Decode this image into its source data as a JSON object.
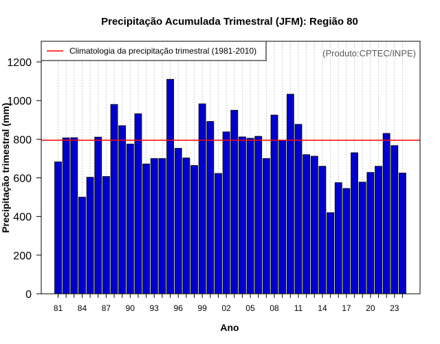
{
  "chart_data": {
    "type": "bar",
    "title": "Precipitação Acumulada Trimestral (JFM): Região 80",
    "xlabel": "Ano",
    "ylabel": "Precipitação trimestral (mm)",
    "ylim": [
      0,
      1300
    ],
    "yticks": [
      0,
      200,
      400,
      600,
      800,
      1000,
      1200
    ],
    "grid": "vertical dotted",
    "categories": [
      "81",
      "82",
      "83",
      "84",
      "85",
      "86",
      "87",
      "88",
      "89",
      "90",
      "91",
      "92",
      "93",
      "94",
      "95",
      "96",
      "97",
      "98",
      "99",
      "00",
      "01",
      "02",
      "03",
      "04",
      "05",
      "06",
      "07",
      "08",
      "09",
      "10",
      "11",
      "12",
      "13",
      "14",
      "15",
      "16",
      "17",
      "18",
      "19",
      "20",
      "21",
      "22",
      "23",
      "24"
    ],
    "x_tick_labels": [
      "81",
      "84",
      "87",
      "90",
      "93",
      "96",
      "99",
      "02",
      "05",
      "08",
      "11",
      "14",
      "17",
      "20",
      "23"
    ],
    "values": [
      683,
      807,
      808,
      500,
      603,
      811,
      607,
      980,
      870,
      775,
      932,
      672,
      700,
      700,
      1110,
      753,
      703,
      664,
      983,
      892,
      623,
      838,
      950,
      812,
      805,
      815,
      700,
      925,
      795,
      1033,
      877,
      720,
      712,
      660,
      420,
      575,
      545,
      730,
      578,
      628,
      660,
      830,
      767,
      625
    ],
    "bar_color": "#0000cd",
    "reference_line": {
      "value": 795,
      "color": "#ff0000",
      "label": "Climatologia da precipitação trimestral (1981-2010)"
    },
    "legend_position": "top-left",
    "annotation": "(Produto:CPTEC/INPE)"
  }
}
